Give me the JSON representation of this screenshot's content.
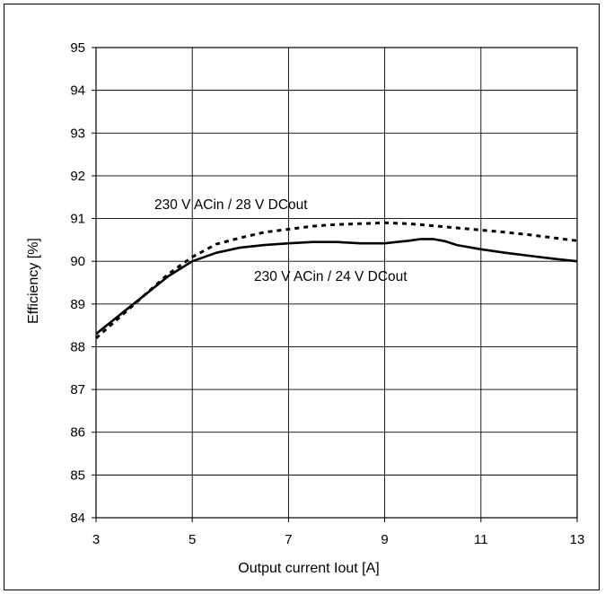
{
  "chart_data": {
    "type": "line",
    "title": "",
    "xlabel": "Output current Iout [A]",
    "ylabel": "Efficiency [%]",
    "xlim": [
      3,
      13
    ],
    "ylim": [
      84,
      95
    ],
    "x_ticks": [
      3,
      5,
      7,
      9,
      11,
      13
    ],
    "y_ticks": [
      84,
      85,
      86,
      87,
      88,
      89,
      90,
      91,
      92,
      93,
      94,
      95
    ],
    "grid": true,
    "annotations": [
      "230 V ACin / 28 V DCout",
      "230 V ACin / 24 V DCout"
    ],
    "series": [
      {
        "style": "dashed",
        "color": "#000000",
        "x": [
          3,
          3.5,
          4,
          4.5,
          5,
          5.5,
          6,
          6.5,
          7,
          7.5,
          8,
          8.5,
          9,
          9.5,
          10,
          10.5,
          11,
          11.5,
          12,
          12.5,
          13
        ],
        "y": [
          88.2,
          88.7,
          89.2,
          89.7,
          90.1,
          90.4,
          90.55,
          90.68,
          90.75,
          90.82,
          90.86,
          90.88,
          90.9,
          90.88,
          90.83,
          90.78,
          90.73,
          90.68,
          90.62,
          90.55,
          90.48
        ]
      },
      {
        "style": "solid",
        "color": "#000000",
        "x": [
          3,
          3.5,
          4,
          4.5,
          5,
          5.5,
          6,
          6.5,
          7,
          7.5,
          8,
          8.5,
          9,
          9.25,
          9.5,
          9.75,
          10,
          10.25,
          10.5,
          11,
          11.5,
          12,
          12.5,
          13
        ],
        "y": [
          88.3,
          88.75,
          89.2,
          89.65,
          90.0,
          90.2,
          90.32,
          90.38,
          90.42,
          90.45,
          90.45,
          90.42,
          90.42,
          90.45,
          90.48,
          90.52,
          90.52,
          90.47,
          90.38,
          90.28,
          90.2,
          90.13,
          90.06,
          90.0
        ]
      }
    ]
  }
}
